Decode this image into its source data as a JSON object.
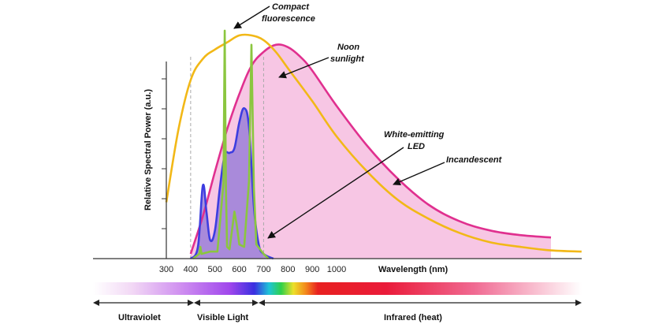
{
  "chart_data": {
    "type": "line",
    "xlabel": "Wavelength (nm)",
    "ylabel": "Relative Spectral Power (a.u.)",
    "x_ticks": [
      "300",
      "400",
      "500",
      "600",
      "700",
      "800",
      "900",
      "1000"
    ],
    "xlim": [
      300,
      1800
    ],
    "ylim": [
      0,
      1
    ],
    "grid": false,
    "visible_band_nm": [
      400,
      700
    ],
    "series": [
      {
        "name": "Noon sunlight",
        "color": "#f2b817",
        "x": [
          300,
          350,
          400,
          450,
          500,
          550,
          600,
          650,
          700,
          750,
          800,
          900,
          1000,
          1100,
          1200,
          1300,
          1400,
          1500,
          1600,
          1700,
          1800
        ],
        "y": [
          0.24,
          0.55,
          0.76,
          0.85,
          0.89,
          0.92,
          0.95,
          0.95,
          0.93,
          0.88,
          0.81,
          0.67,
          0.52,
          0.37,
          0.25,
          0.17,
          0.11,
          0.07,
          0.05,
          0.035,
          0.03
        ]
      },
      {
        "name": "Incandescent",
        "color": "#e0308f",
        "fill": "#f7c6e4",
        "x": [
          400,
          450,
          500,
          550,
          600,
          650,
          700,
          750,
          800,
          850,
          900,
          1000,
          1100,
          1200,
          1300,
          1400,
          1500,
          1600,
          1700
        ],
        "y": [
          0.02,
          0.18,
          0.37,
          0.55,
          0.7,
          0.82,
          0.88,
          0.91,
          0.9,
          0.86,
          0.8,
          0.65,
          0.48,
          0.34,
          0.23,
          0.16,
          0.12,
          0.1,
          0.09
        ]
      },
      {
        "name": "White-emitting LED",
        "color": "#3d3de0",
        "fill": "#9b7fd8",
        "x": [
          400,
          430,
          450,
          465,
          480,
          500,
          520,
          540,
          560,
          580,
          600,
          620,
          640,
          660,
          680,
          700,
          740
        ],
        "y": [
          0.0,
          0.05,
          0.31,
          0.2,
          0.08,
          0.12,
          0.3,
          0.44,
          0.45,
          0.47,
          0.58,
          0.64,
          0.56,
          0.22,
          0.06,
          0.02,
          0.0
        ]
      },
      {
        "name": "Compact fluorescence",
        "color": "#8bc63f",
        "x": [
          410,
          435,
          440,
          445,
          480,
          510,
          535,
          540,
          545,
          550,
          560,
          580,
          590,
          600,
          620,
          640,
          650,
          660,
          670,
          700,
          720
        ],
        "y": [
          0.0,
          0.02,
          0.05,
          0.02,
          0.03,
          0.03,
          0.32,
          0.97,
          0.3,
          0.05,
          0.04,
          0.2,
          0.14,
          0.06,
          0.05,
          0.33,
          0.91,
          0.3,
          0.06,
          0.02,
          0.0
        ]
      }
    ],
    "annotations": [
      "Compact fluorescence",
      "Noon sunlight",
      "White-emitting LED",
      "Incandescent"
    ],
    "regions": [
      {
        "label": "Ultraviolet",
        "range_nm": [
          300,
          400
        ]
      },
      {
        "label": "Visible Light",
        "range_nm": [
          400,
          700
        ]
      },
      {
        "label": "Infrared (heat)",
        "range_nm": [
          700,
          1800
        ]
      }
    ]
  },
  "labels": {
    "fluor_line1": "Compact",
    "fluor_line2": "fluorescence",
    "sun_line1": "Noon",
    "sun_line2": "sunlight",
    "led_line1": "White-emitting",
    "led_line2": "LED",
    "incandescent": "Incandescent"
  }
}
